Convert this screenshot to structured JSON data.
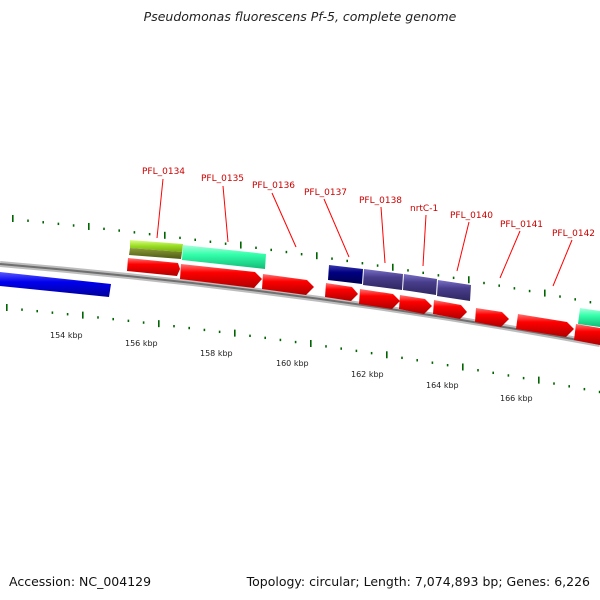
{
  "title": "Pseudomonas fluorescens Pf-5, complete genome",
  "footer": {
    "accession": "Accession: NC_004129",
    "summary": "Topology: circular; Length: 7,074,893 bp; Genes: 6,226"
  },
  "scale_labels": [
    "154 kbp",
    "156 kbp",
    "158 kbp",
    "160 kbp",
    "162 kbp",
    "164 kbp",
    "166 kbp"
  ],
  "gene_labels": [
    "PFL_0134",
    "PFL_0135",
    "PFL_0136",
    "PFL_0137",
    "PFL_0138",
    "nrtC-1",
    "PFL_0140",
    "PFL_0141",
    "PFL_0142"
  ],
  "colors": {
    "backbone": "#808080",
    "gene": "#ff0000",
    "blue_feature": "#0000ee",
    "navy_feature": "#000080",
    "slate_feature": "#483d8b",
    "aqua_feature": "#33ffaa",
    "lime_feature": "#99dd22",
    "olive_feature": "#6b7a1e",
    "tick": "#006400",
    "label": "#cc0000"
  }
}
